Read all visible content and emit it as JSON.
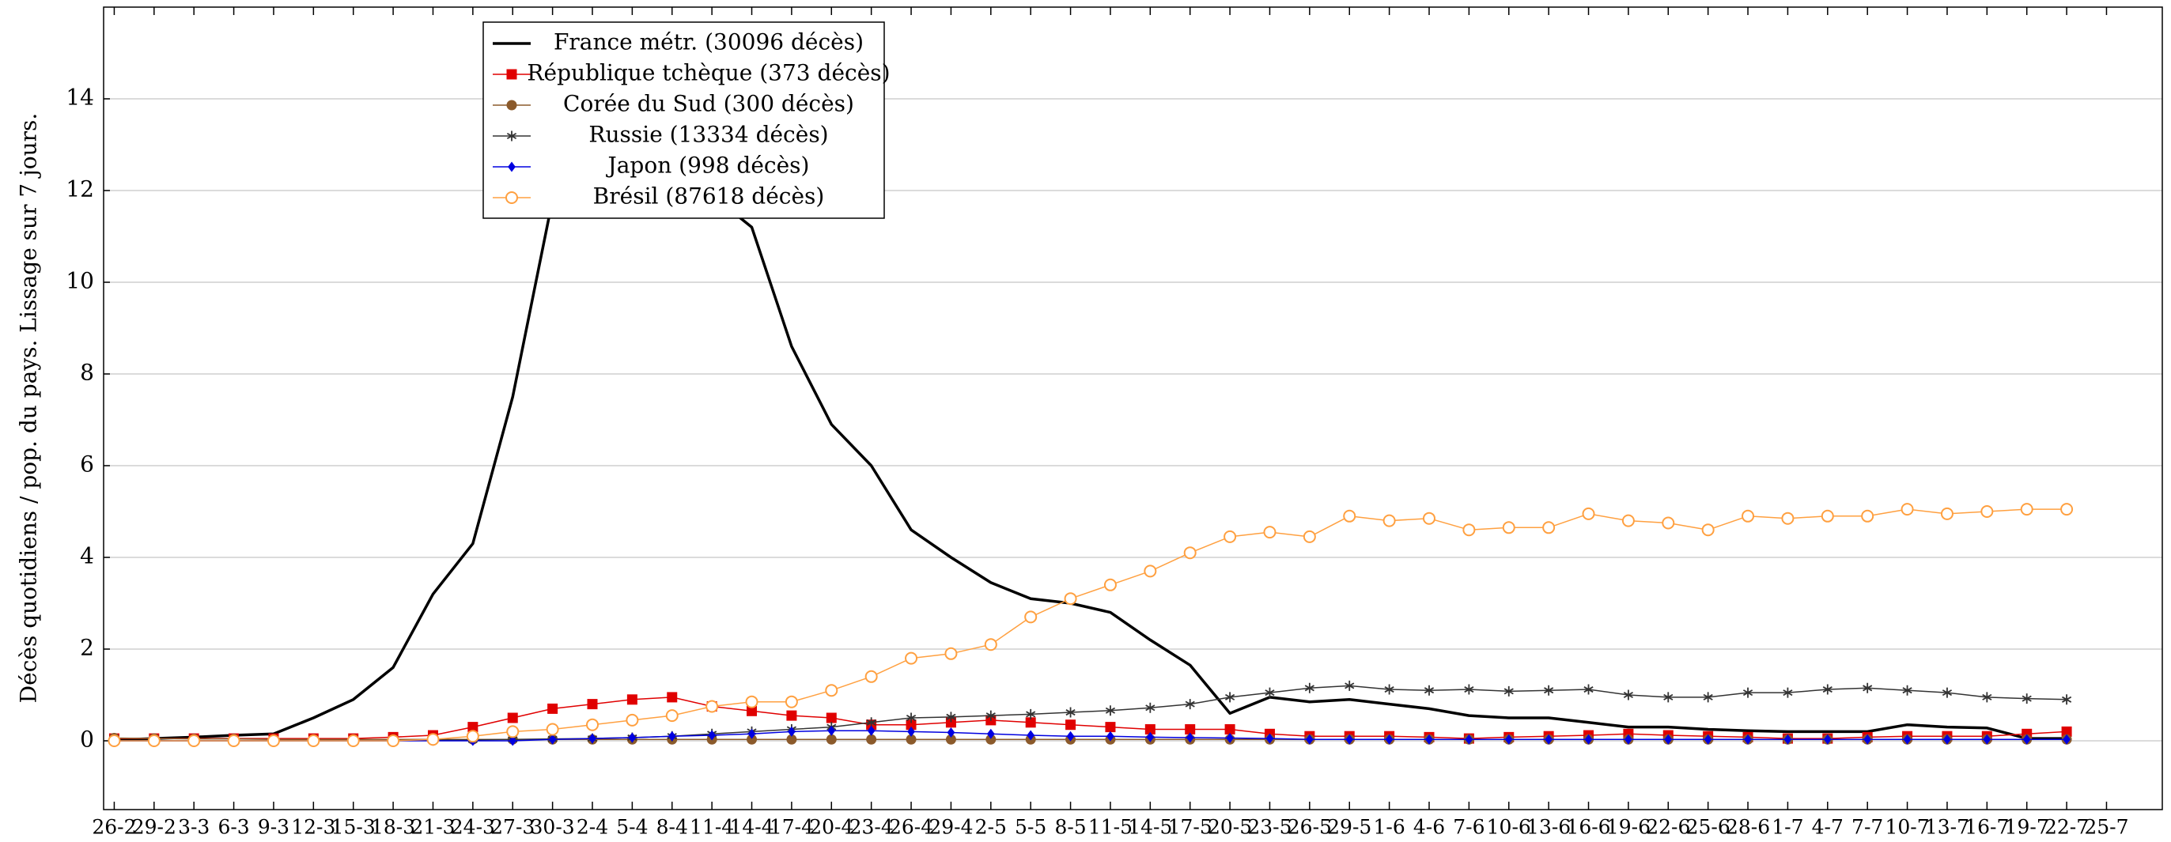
{
  "chart_data": {
    "type": "line",
    "y_label": "Décès quotidiens / pop. du pays. Lissage sur 7 jours.",
    "xlim": [
      -0.8,
      154.2
    ],
    "ylim": [
      -1.5,
      16
    ],
    "yticks": [
      0,
      2,
      4,
      6,
      8,
      10,
      12,
      14
    ],
    "grid": true,
    "legend": "top-left",
    "xticks": [
      {
        "value": 0,
        "label": "26-2"
      },
      {
        "value": 3,
        "label": "29-2"
      },
      {
        "value": 6,
        "label": "3-3"
      },
      {
        "value": 9,
        "label": "6-3"
      },
      {
        "value": 12,
        "label": "9-3"
      },
      {
        "value": 15,
        "label": "12-3"
      },
      {
        "value": 18,
        "label": "15-3"
      },
      {
        "value": 21,
        "label": "18-3"
      },
      {
        "value": 24,
        "label": "21-3"
      },
      {
        "value": 27,
        "label": "24-3"
      },
      {
        "value": 30,
        "label": "27-3"
      },
      {
        "value": 33,
        "label": "30-3"
      },
      {
        "value": 36,
        "label": "2-4"
      },
      {
        "value": 39,
        "label": "5-4"
      },
      {
        "value": 42,
        "label": "8-4"
      },
      {
        "value": 45,
        "label": "11-4"
      },
      {
        "value": 48,
        "label": "14-4"
      },
      {
        "value": 51,
        "label": "17-4"
      },
      {
        "value": 54,
        "label": "20-4"
      },
      {
        "value": 57,
        "label": "23-4"
      },
      {
        "value": 60,
        "label": "26-4"
      },
      {
        "value": 63,
        "label": "29-4"
      },
      {
        "value": 66,
        "label": "2-5"
      },
      {
        "value": 69,
        "label": "5-5"
      },
      {
        "value": 72,
        "label": "8-5"
      },
      {
        "value": 75,
        "label": "11-5"
      },
      {
        "value": 78,
        "label": "14-5"
      },
      {
        "value": 81,
        "label": "17-5"
      },
      {
        "value": 84,
        "label": "20-5"
      },
      {
        "value": 87,
        "label": "23-5"
      },
      {
        "value": 90,
        "label": "26-5"
      },
      {
        "value": 93,
        "label": "29-5"
      },
      {
        "value": 96,
        "label": "1-6"
      },
      {
        "value": 99,
        "label": "4-6"
      },
      {
        "value": 102,
        "label": "7-6"
      },
      {
        "value": 105,
        "label": "10-6"
      },
      {
        "value": 108,
        "label": "13-6"
      },
      {
        "value": 111,
        "label": "16-6"
      },
      {
        "value": 114,
        "label": "19-6"
      },
      {
        "value": 117,
        "label": "22-6"
      },
      {
        "value": 120,
        "label": "25-6"
      },
      {
        "value": 123,
        "label": "28-6"
      },
      {
        "value": 126,
        "label": "1-7"
      },
      {
        "value": 129,
        "label": "4-7"
      },
      {
        "value": 132,
        "label": "7-7"
      },
      {
        "value": 135,
        "label": "10-7"
      },
      {
        "value": 138,
        "label": "13-7"
      },
      {
        "value": 141,
        "label": "16-7"
      },
      {
        "value": 144,
        "label": "19-7"
      },
      {
        "value": 147,
        "label": "22-7"
      },
      {
        "value": 150,
        "label": "25-7"
      }
    ],
    "x": [
      0,
      3,
      6,
      9,
      12,
      15,
      18,
      21,
      24,
      27,
      30,
      33,
      36,
      39,
      42,
      45,
      48,
      51,
      54,
      57,
      60,
      63,
      66,
      69,
      72,
      75,
      78,
      81,
      84,
      87,
      90,
      93,
      96,
      99,
      102,
      105,
      108,
      111,
      114,
      117,
      120,
      123,
      126,
      129,
      132,
      135,
      138,
      141,
      144,
      147
    ],
    "series": [
      {
        "name": "France métr. (30096 décès)",
        "color": "#000000",
        "marker": "none",
        "values": [
          0.02,
          0.05,
          0.08,
          0.12,
          0.15,
          0.5,
          0.9,
          1.6,
          3.2,
          4.3,
          7.5,
          11.8,
          12.3,
          12.5,
          12.0,
          11.9,
          11.2,
          8.6,
          6.9,
          6.0,
          4.6,
          4.0,
          3.45,
          3.1,
          3.0,
          2.8,
          2.2,
          1.65,
          0.6,
          0.95,
          0.85,
          0.9,
          0.8,
          0.7,
          0.55,
          0.5,
          0.5,
          0.4,
          0.3,
          0.3,
          0.25,
          0.22,
          0.2,
          0.2,
          0.2,
          0.35,
          0.3,
          0.28,
          0.05,
          0.05
        ]
      },
      {
        "name": "République tchèque (373 décès)",
        "color": "#e00000",
        "marker": "square",
        "values": [
          0.05,
          0.05,
          0.05,
          0.05,
          0.05,
          0.05,
          0.05,
          0.08,
          0.12,
          0.3,
          0.5,
          0.7,
          0.8,
          0.9,
          0.95,
          0.75,
          0.65,
          0.55,
          0.5,
          0.35,
          0.35,
          0.4,
          0.45,
          0.4,
          0.35,
          0.3,
          0.25,
          0.25,
          0.25,
          0.15,
          0.1,
          0.1,
          0.1,
          0.08,
          0.05,
          0.08,
          0.1,
          0.12,
          0.15,
          0.12,
          0.1,
          0.08,
          0.05,
          0.05,
          0.08,
          0.1,
          0.1,
          0.1,
          0.15,
          0.2
        ]
      },
      {
        "name": "Corée du Sud (300 décès)",
        "color": "#8b5a2b",
        "marker": "circle",
        "values": [
          0.06,
          0.05,
          0.04,
          0.04,
          0.03,
          0.03,
          0.03,
          0.03,
          0.03,
          0.03,
          0.03,
          0.03,
          0.03,
          0.03,
          0.03,
          0.03,
          0.03,
          0.03,
          0.03,
          0.03,
          0.03,
          0.03,
          0.03,
          0.03,
          0.03,
          0.03,
          0.03,
          0.03,
          0.03,
          0.03,
          0.03,
          0.03,
          0.03,
          0.03,
          0.03,
          0.03,
          0.03,
          0.03,
          0.03,
          0.03,
          0.03,
          0.03,
          0.03,
          0.03,
          0.03,
          0.03,
          0.03,
          0.03,
          0.03,
          0.03
        ]
      },
      {
        "name": "Russie (13334 décès)",
        "color": "#333333",
        "marker": "star",
        "values": [
          0,
          0,
          0,
          0,
          0,
          0,
          0,
          0,
          0.02,
          0.02,
          0.03,
          0.04,
          0.05,
          0.07,
          0.1,
          0.15,
          0.2,
          0.25,
          0.3,
          0.4,
          0.5,
          0.52,
          0.55,
          0.58,
          0.62,
          0.66,
          0.72,
          0.8,
          0.95,
          1.05,
          1.15,
          1.2,
          1.12,
          1.1,
          1.12,
          1.08,
          1.1,
          1.12,
          1.0,
          0.95,
          0.95,
          1.05,
          1.05,
          1.12,
          1.15,
          1.1,
          1.05,
          0.95,
          0.92,
          0.9
        ]
      },
      {
        "name": "Japon (998 décès)",
        "color": "#0000e0",
        "marker": "diamond",
        "values": [
          0,
          0,
          0,
          0,
          0,
          0,
          0,
          0,
          0,
          0,
          0,
          0.03,
          0.05,
          0.07,
          0.1,
          0.12,
          0.15,
          0.2,
          0.22,
          0.22,
          0.2,
          0.18,
          0.15,
          0.12,
          0.1,
          0.1,
          0.08,
          0.07,
          0.06,
          0.05,
          0.03,
          0.03,
          0.03,
          0.03,
          0.03,
          0.03,
          0.03,
          0.03,
          0.03,
          0.03,
          0.03,
          0.03,
          0.03,
          0.03,
          0.03,
          0.03,
          0.03,
          0.03,
          0.03,
          0.03
        ]
      },
      {
        "name": "Brésil (87618 décès)",
        "color": "#ffa040",
        "marker": "open-circle",
        "values": [
          0,
          0,
          0,
          0,
          0,
          0,
          0,
          0,
          0.03,
          0.1,
          0.2,
          0.25,
          0.35,
          0.45,
          0.55,
          0.75,
          0.85,
          0.85,
          1.1,
          1.4,
          1.8,
          1.9,
          2.1,
          2.7,
          3.1,
          3.4,
          3.7,
          4.1,
          4.45,
          4.55,
          4.45,
          4.9,
          4.8,
          4.85,
          4.6,
          4.65,
          4.65,
          4.95,
          4.8,
          4.75,
          4.6,
          4.9,
          4.85,
          4.9,
          4.9,
          5.05,
          4.95,
          5.0,
          5.05,
          5.05
        ]
      }
    ]
  }
}
